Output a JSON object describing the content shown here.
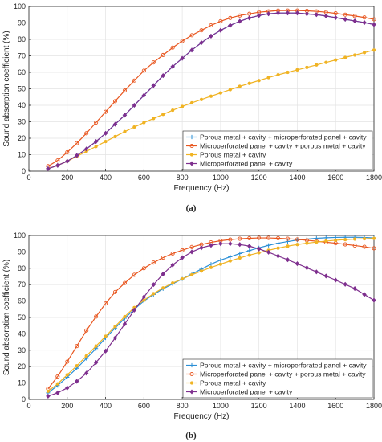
{
  "chart_data": [
    {
      "type": "line",
      "caption": "(a)",
      "xlabel": "Frequency (Hz)",
      "ylabel": "Sound absorption coefficient (%)",
      "xlim": [
        0,
        1800
      ],
      "ylim": [
        0,
        100
      ],
      "xticks": [
        0,
        200,
        400,
        600,
        800,
        1000,
        1200,
        1400,
        1600,
        1800
      ],
      "yticks": [
        0,
        10,
        20,
        30,
        40,
        50,
        60,
        70,
        80,
        90,
        100
      ],
      "grid": true,
      "legend_position": "bottom-right",
      "x": [
        100,
        150,
        200,
        250,
        300,
        350,
        400,
        450,
        500,
        550,
        600,
        650,
        700,
        750,
        800,
        850,
        900,
        950,
        1000,
        1050,
        1100,
        1150,
        1200,
        1250,
        1300,
        1350,
        1400,
        1450,
        1500,
        1550,
        1600,
        1650,
        1700,
        1750,
        1800
      ],
      "series": [
        {
          "name": "Porous metal + cavity + microperforated panel + cavity",
          "color": "#2b8fd6",
          "marker": "plus",
          "values": [
            1.5,
            3.5,
            6,
            9.5,
            13.5,
            18,
            23,
            28.5,
            34,
            40,
            46,
            52,
            58,
            63.5,
            68.5,
            73.5,
            78,
            82,
            85.5,
            88.5,
            91,
            93,
            94.5,
            95.5,
            96,
            96,
            96,
            95.5,
            95,
            94.2,
            93.2,
            92.2,
            91.2,
            90.2,
            89
          ]
        },
        {
          "name": "Microperforated panel + cavity + porous metal + cavity",
          "color": "#e8561f",
          "marker": "circle",
          "values": [
            3,
            6.5,
            11.5,
            17,
            23,
            29.5,
            36,
            42.5,
            49,
            55,
            61,
            66,
            70.5,
            75,
            79,
            82.5,
            85.5,
            88.5,
            91,
            93,
            94.5,
            95.5,
            96.5,
            97,
            97.5,
            97.5,
            97.5,
            97.3,
            97,
            96.5,
            95.8,
            95,
            94.2,
            93.3,
            92.2
          ]
        },
        {
          "name": "Porous metal + cavity",
          "color": "#f0b323",
          "marker": "dot",
          "values": [
            1.5,
            3.5,
            6,
            9,
            12,
            15,
            18,
            21,
            24,
            26.8,
            29.5,
            32,
            34.5,
            37,
            39.3,
            41.5,
            43.5,
            45.5,
            47.5,
            49.5,
            51.5,
            53.3,
            55,
            56.8,
            58.5,
            60,
            61.5,
            63,
            64.5,
            66,
            67.5,
            69,
            70.5,
            72,
            73.5
          ]
        },
        {
          "name": "Microperforated panel + cavity",
          "color": "#7e2f8e",
          "marker": "diamond",
          "values": [
            1.5,
            3.5,
            6,
            9.5,
            13.5,
            18,
            23,
            28.5,
            34,
            40,
            46,
            52,
            58,
            63.5,
            68.5,
            73.5,
            78,
            82,
            85.5,
            88.5,
            91,
            93,
            94.5,
            95.5,
            96,
            96,
            96,
            95.5,
            95,
            94.2,
            93.2,
            92.2,
            91.2,
            90.2,
            89
          ]
        }
      ]
    },
    {
      "type": "line",
      "caption": "(b)",
      "xlabel": "Frequency (Hz)",
      "ylabel": "Sound absorption coefficient (%)",
      "xlim": [
        0,
        1800
      ],
      "ylim": [
        0,
        100
      ],
      "xticks": [
        0,
        200,
        400,
        600,
        800,
        1000,
        1200,
        1400,
        1600,
        1800
      ],
      "yticks": [
        0,
        10,
        20,
        30,
        40,
        50,
        60,
        70,
        80,
        90,
        100
      ],
      "grid": true,
      "legend_position": "bottom-right",
      "x": [
        100,
        150,
        200,
        250,
        300,
        350,
        400,
        450,
        500,
        550,
        600,
        650,
        700,
        750,
        800,
        850,
        900,
        950,
        1000,
        1050,
        1100,
        1150,
        1200,
        1250,
        1300,
        1350,
        1400,
        1450,
        1500,
        1550,
        1600,
        1650,
        1700,
        1750,
        1800
      ],
      "series": [
        {
          "name": "Porous metal + cavity + microperforated panel + cavity",
          "color": "#2b8fd6",
          "marker": "plus",
          "values": [
            4,
            8.5,
            13.5,
            19,
            25,
            31,
            37.5,
            43.5,
            49.5,
            55,
            60,
            64,
            67.5,
            70.5,
            73.5,
            76.5,
            79.5,
            82.5,
            85,
            87,
            89,
            90.8,
            92.5,
            94,
            95.3,
            96.3,
            97.2,
            97.8,
            98.3,
            98.6,
            98.8,
            98.9,
            98.9,
            98.8,
            98.5
          ]
        },
        {
          "name": "Microperforated panel + cavity + porous metal + cavity",
          "color": "#e8561f",
          "marker": "circle",
          "values": [
            6.5,
            14,
            23,
            32.5,
            42,
            50.5,
            58.5,
            65.5,
            71,
            76,
            80,
            83.5,
            86.5,
            89,
            91,
            93,
            94.5,
            95.8,
            96.8,
            97.5,
            98,
            98.3,
            98.5,
            98.5,
            98.3,
            98,
            97.6,
            97.1,
            96.5,
            95.9,
            95.3,
            94.6,
            93.9,
            93.1,
            92.2
          ]
        },
        {
          "name": "Porous metal + cavity",
          "color": "#f0b323",
          "marker": "dot",
          "values": [
            5,
            9.5,
            15,
            20.5,
            26.5,
            32.5,
            38.5,
            44.5,
            50.5,
            56,
            60.5,
            64.5,
            68,
            71,
            73.5,
            76,
            78.3,
            80.5,
            82.5,
            84.5,
            86.3,
            88,
            89.5,
            91,
            92.3,
            93.5,
            94.5,
            95.3,
            96,
            96.6,
            97.1,
            97.5,
            97.8,
            98,
            98.2
          ]
        },
        {
          "name": "Microperforated panel + cavity",
          "color": "#7e2f8e",
          "marker": "diamond",
          "values": [
            2,
            4,
            7,
            11,
            16,
            22.5,
            29.5,
            37.5,
            46,
            54.5,
            62.5,
            70,
            76.5,
            82,
            86.5,
            90,
            92.5,
            94,
            95,
            95,
            94.5,
            93.5,
            91.8,
            89.8,
            87.5,
            85.2,
            82.8,
            80.3,
            77.8,
            75.3,
            72.8,
            70.2,
            67.6,
            64,
            60.5
          ]
        }
      ]
    }
  ]
}
